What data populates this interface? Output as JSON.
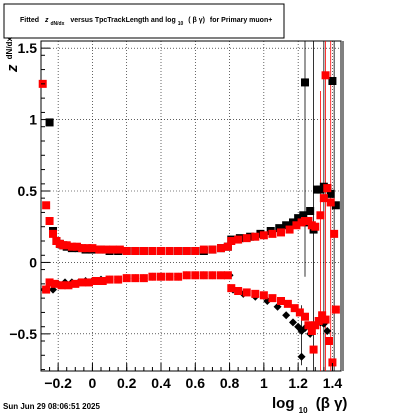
{
  "title": {
    "prefix": "Fitted",
    "z": "z",
    "z_sub": "dN/dx",
    "middle": "versus TpcTrackLength and log",
    "log_sub": "10",
    "bg": "( β γ)",
    "suffix": "for Primary muon+"
  },
  "timestamp": "Sun Jun 29 08:06:51 2025",
  "ylabel": {
    "main": "z",
    "sub": "dN/dx"
  },
  "xlabel": {
    "main": "log",
    "sub": "10",
    "tail": "(β γ)"
  },
  "colors": {
    "series_black": "#000000",
    "series_red": "#ff0000",
    "grid": "#000000"
  },
  "chart_data": {
    "type": "scatter",
    "xlim": [
      -0.3,
      1.45
    ],
    "ylim": [
      -0.76,
      1.55
    ],
    "xticks": [
      {
        "v": -0.2,
        "label": "−0.2"
      },
      {
        "v": 0,
        "label": "0"
      },
      {
        "v": 0.2,
        "label": "0.2"
      },
      {
        "v": 0.4,
        "label": "0.4"
      },
      {
        "v": 0.6,
        "label": "0.6"
      },
      {
        "v": 0.8,
        "label": "0.8"
      },
      {
        "v": 1.0,
        "label": "1"
      },
      {
        "v": 1.2,
        "label": "1.2"
      },
      {
        "v": 1.4,
        "label": "1.4"
      }
    ],
    "yticks": [
      {
        "v": -0.5,
        "label": "−0.5"
      },
      {
        "v": 0,
        "label": "0"
      },
      {
        "v": 0.5,
        "label": "0.5"
      },
      {
        "v": 1.0,
        "label": "1"
      },
      {
        "v": 1.5,
        "label": "1.5"
      }
    ],
    "grid": true,
    "series": [
      {
        "color": "black",
        "points": [
          {
            "x": -0.25,
            "y": 0.98
          },
          {
            "x": -0.23,
            "y": 0.22
          },
          {
            "x": -0.21,
            "y": 0.15
          },
          {
            "x": -0.19,
            "y": 0.13
          },
          {
            "x": -0.17,
            "y": 0.12
          },
          {
            "x": -0.15,
            "y": 0.11
          },
          {
            "x": -0.12,
            "y": 0.1
          },
          {
            "x": -0.08,
            "y": 0.1
          },
          {
            "x": -0.04,
            "y": 0.09
          },
          {
            "x": 0.0,
            "y": 0.09
          },
          {
            "x": 0.05,
            "y": 0.09
          },
          {
            "x": 0.1,
            "y": 0.08
          },
          {
            "x": 0.15,
            "y": 0.08
          },
          {
            "x": 0.2,
            "y": 0.08
          },
          {
            "x": 0.25,
            "y": 0.08
          },
          {
            "x": 0.3,
            "y": 0.08
          },
          {
            "x": 0.35,
            "y": 0.08
          },
          {
            "x": 0.4,
            "y": 0.08
          },
          {
            "x": 0.45,
            "y": 0.08
          },
          {
            "x": 0.5,
            "y": 0.08
          },
          {
            "x": 0.55,
            "y": 0.08
          },
          {
            "x": 0.6,
            "y": 0.08
          },
          {
            "x": 0.65,
            "y": 0.08
          },
          {
            "x": 0.7,
            "y": 0.09
          },
          {
            "x": 0.75,
            "y": 0.1
          },
          {
            "x": 0.79,
            "y": 0.11
          },
          {
            "x": 0.81,
            "y": 0.16
          },
          {
            "x": 0.86,
            "y": 0.17
          },
          {
            "x": 0.92,
            "y": 0.18
          },
          {
            "x": 0.98,
            "y": 0.2
          },
          {
            "x": 1.04,
            "y": 0.22
          },
          {
            "x": 1.09,
            "y": 0.24
          },
          {
            "x": 1.13,
            "y": 0.26
          },
          {
            "x": 1.17,
            "y": 0.28
          },
          {
            "x": 1.2,
            "y": 0.31
          },
          {
            "x": 1.23,
            "y": 0.33
          },
          {
            "x": 1.25,
            "y": 0.28
          },
          {
            "x": 1.27,
            "y": 0.36
          },
          {
            "x": 1.29,
            "y": 0.23
          },
          {
            "x": 1.31,
            "y": 0.51
          },
          {
            "x": 1.33,
            "y": 0.51
          },
          {
            "x": 1.35,
            "y": 0.53
          },
          {
            "x": 1.37,
            "y": 0.52
          },
          {
            "x": 1.39,
            "y": 0.48
          },
          {
            "x": 1.42,
            "y": 0.4
          },
          {
            "x": 1.24,
            "y": 1.26
          },
          {
            "x": 1.4,
            "y": 1.27
          },
          {
            "x": -0.28,
            "y": -0.19
          },
          {
            "x": -0.23,
            "y": -0.19
          },
          {
            "x": -0.2,
            "y": -0.15
          },
          {
            "x": -0.16,
            "y": -0.14
          },
          {
            "x": -0.12,
            "y": -0.14
          },
          {
            "x": -0.08,
            "y": -0.14
          },
          {
            "x": -0.04,
            "y": -0.13
          },
          {
            "x": 0.0,
            "y": -0.13
          },
          {
            "x": 0.05,
            "y": -0.12
          },
          {
            "x": 0.1,
            "y": -0.12
          },
          {
            "x": 0.15,
            "y": -0.12
          },
          {
            "x": 0.2,
            "y": -0.11
          },
          {
            "x": 0.25,
            "y": -0.11
          },
          {
            "x": 0.3,
            "y": -0.11
          },
          {
            "x": 0.35,
            "y": -0.1
          },
          {
            "x": 0.4,
            "y": -0.1
          },
          {
            "x": 0.45,
            "y": -0.1
          },
          {
            "x": 0.5,
            "y": -0.1
          },
          {
            "x": 0.55,
            "y": -0.09
          },
          {
            "x": 0.6,
            "y": -0.09
          },
          {
            "x": 0.65,
            "y": -0.09
          },
          {
            "x": 0.7,
            "y": -0.09
          },
          {
            "x": 0.75,
            "y": -0.09
          },
          {
            "x": 0.8,
            "y": -0.09
          },
          {
            "x": 0.82,
            "y": -0.19
          },
          {
            "x": 0.88,
            "y": -0.22
          },
          {
            "x": 0.95,
            "y": -0.24
          },
          {
            "x": 1.02,
            "y": -0.27
          },
          {
            "x": 1.08,
            "y": -0.31
          },
          {
            "x": 1.13,
            "y": -0.37
          },
          {
            "x": 1.17,
            "y": -0.42
          },
          {
            "x": 1.2,
            "y": -0.45
          },
          {
            "x": 1.22,
            "y": -0.48
          },
          {
            "x": 1.24,
            "y": -0.46
          },
          {
            "x": 1.27,
            "y": -0.5
          },
          {
            "x": 1.22,
            "y": -0.66
          },
          {
            "x": 1.33,
            "y": -0.42
          },
          {
            "x": 1.35,
            "y": -0.43
          },
          {
            "x": 1.37,
            "y": -0.48
          },
          {
            "x": 1.42,
            "y": -0.33
          }
        ]
      },
      {
        "color": "red",
        "points": [
          {
            "x": -0.29,
            "y": 1.25
          },
          {
            "x": -0.27,
            "y": 0.4
          },
          {
            "x": -0.25,
            "y": 0.29
          },
          {
            "x": -0.23,
            "y": 0.2
          },
          {
            "x": -0.21,
            "y": 0.15
          },
          {
            "x": -0.19,
            "y": 0.13
          },
          {
            "x": -0.17,
            "y": 0.12
          },
          {
            "x": -0.15,
            "y": 0.12
          },
          {
            "x": -0.12,
            "y": 0.11
          },
          {
            "x": -0.09,
            "y": 0.11
          },
          {
            "x": -0.06,
            "y": 0.1
          },
          {
            "x": -0.03,
            "y": 0.1
          },
          {
            "x": 0.0,
            "y": 0.1
          },
          {
            "x": 0.04,
            "y": 0.09
          },
          {
            "x": 0.08,
            "y": 0.09
          },
          {
            "x": 0.12,
            "y": 0.09
          },
          {
            "x": 0.16,
            "y": 0.09
          },
          {
            "x": 0.2,
            "y": 0.08
          },
          {
            "x": 0.25,
            "y": 0.08
          },
          {
            "x": 0.3,
            "y": 0.08
          },
          {
            "x": 0.35,
            "y": 0.08
          },
          {
            "x": 0.4,
            "y": 0.08
          },
          {
            "x": 0.45,
            "y": 0.08
          },
          {
            "x": 0.5,
            "y": 0.08
          },
          {
            "x": 0.55,
            "y": 0.08
          },
          {
            "x": 0.6,
            "y": 0.08
          },
          {
            "x": 0.65,
            "y": 0.09
          },
          {
            "x": 0.7,
            "y": 0.09
          },
          {
            "x": 0.75,
            "y": 0.1
          },
          {
            "x": 0.79,
            "y": 0.11
          },
          {
            "x": 0.81,
            "y": 0.15
          },
          {
            "x": 0.85,
            "y": 0.16
          },
          {
            "x": 0.9,
            "y": 0.17
          },
          {
            "x": 0.95,
            "y": 0.18
          },
          {
            "x": 1.0,
            "y": 0.19
          },
          {
            "x": 1.05,
            "y": 0.2
          },
          {
            "x": 1.1,
            "y": 0.21
          },
          {
            "x": 1.15,
            "y": 0.23
          },
          {
            "x": 1.19,
            "y": 0.26
          },
          {
            "x": 1.22,
            "y": 0.28
          },
          {
            "x": 1.24,
            "y": 0.29
          },
          {
            "x": 1.26,
            "y": 0.29
          },
          {
            "x": 1.28,
            "y": 0.26
          },
          {
            "x": 1.3,
            "y": 0.25
          },
          {
            "x": 1.33,
            "y": 0.33
          },
          {
            "x": 1.35,
            "y": 0.45
          },
          {
            "x": 1.37,
            "y": 0.52
          },
          {
            "x": 1.39,
            "y": 0.42
          },
          {
            "x": 1.41,
            "y": 0.2
          },
          {
            "x": 1.36,
            "y": 1.31
          },
          {
            "x": -0.27,
            "y": -0.19
          },
          {
            "x": -0.25,
            "y": -0.14
          },
          {
            "x": -0.22,
            "y": -0.15
          },
          {
            "x": -0.18,
            "y": -0.16
          },
          {
            "x": -0.14,
            "y": -0.16
          },
          {
            "x": -0.1,
            "y": -0.15
          },
          {
            "x": -0.06,
            "y": -0.14
          },
          {
            "x": -0.02,
            "y": -0.14
          },
          {
            "x": 0.02,
            "y": -0.13
          },
          {
            "x": 0.06,
            "y": -0.13
          },
          {
            "x": 0.1,
            "y": -0.12
          },
          {
            "x": 0.15,
            "y": -0.12
          },
          {
            "x": 0.2,
            "y": -0.11
          },
          {
            "x": 0.25,
            "y": -0.11
          },
          {
            "x": 0.3,
            "y": -0.11
          },
          {
            "x": 0.35,
            "y": -0.1
          },
          {
            "x": 0.4,
            "y": -0.1
          },
          {
            "x": 0.45,
            "y": -0.1
          },
          {
            "x": 0.5,
            "y": -0.1
          },
          {
            "x": 0.55,
            "y": -0.09
          },
          {
            "x": 0.6,
            "y": -0.09
          },
          {
            "x": 0.65,
            "y": -0.09
          },
          {
            "x": 0.7,
            "y": -0.09
          },
          {
            "x": 0.75,
            "y": -0.09
          },
          {
            "x": 0.79,
            "y": -0.09
          },
          {
            "x": 0.81,
            "y": -0.18
          },
          {
            "x": 0.85,
            "y": -0.2
          },
          {
            "x": 0.9,
            "y": -0.21
          },
          {
            "x": 0.95,
            "y": -0.22
          },
          {
            "x": 1.0,
            "y": -0.23
          },
          {
            "x": 1.05,
            "y": -0.25
          },
          {
            "x": 1.1,
            "y": -0.27
          },
          {
            "x": 1.14,
            "y": -0.29
          },
          {
            "x": 1.18,
            "y": -0.32
          },
          {
            "x": 1.21,
            "y": -0.35
          },
          {
            "x": 1.24,
            "y": -0.38
          },
          {
            "x": 1.26,
            "y": -0.44
          },
          {
            "x": 1.28,
            "y": -0.48
          },
          {
            "x": 1.3,
            "y": -0.44
          },
          {
            "x": 1.32,
            "y": -0.41
          },
          {
            "x": 1.34,
            "y": -0.37
          },
          {
            "x": 1.36,
            "y": -0.4
          },
          {
            "x": 1.38,
            "y": -0.55
          },
          {
            "x": 1.4,
            "y": -0.7
          },
          {
            "x": 1.42,
            "y": -0.33
          },
          {
            "x": 1.29,
            "y": -0.61
          }
        ]
      }
    ]
  }
}
